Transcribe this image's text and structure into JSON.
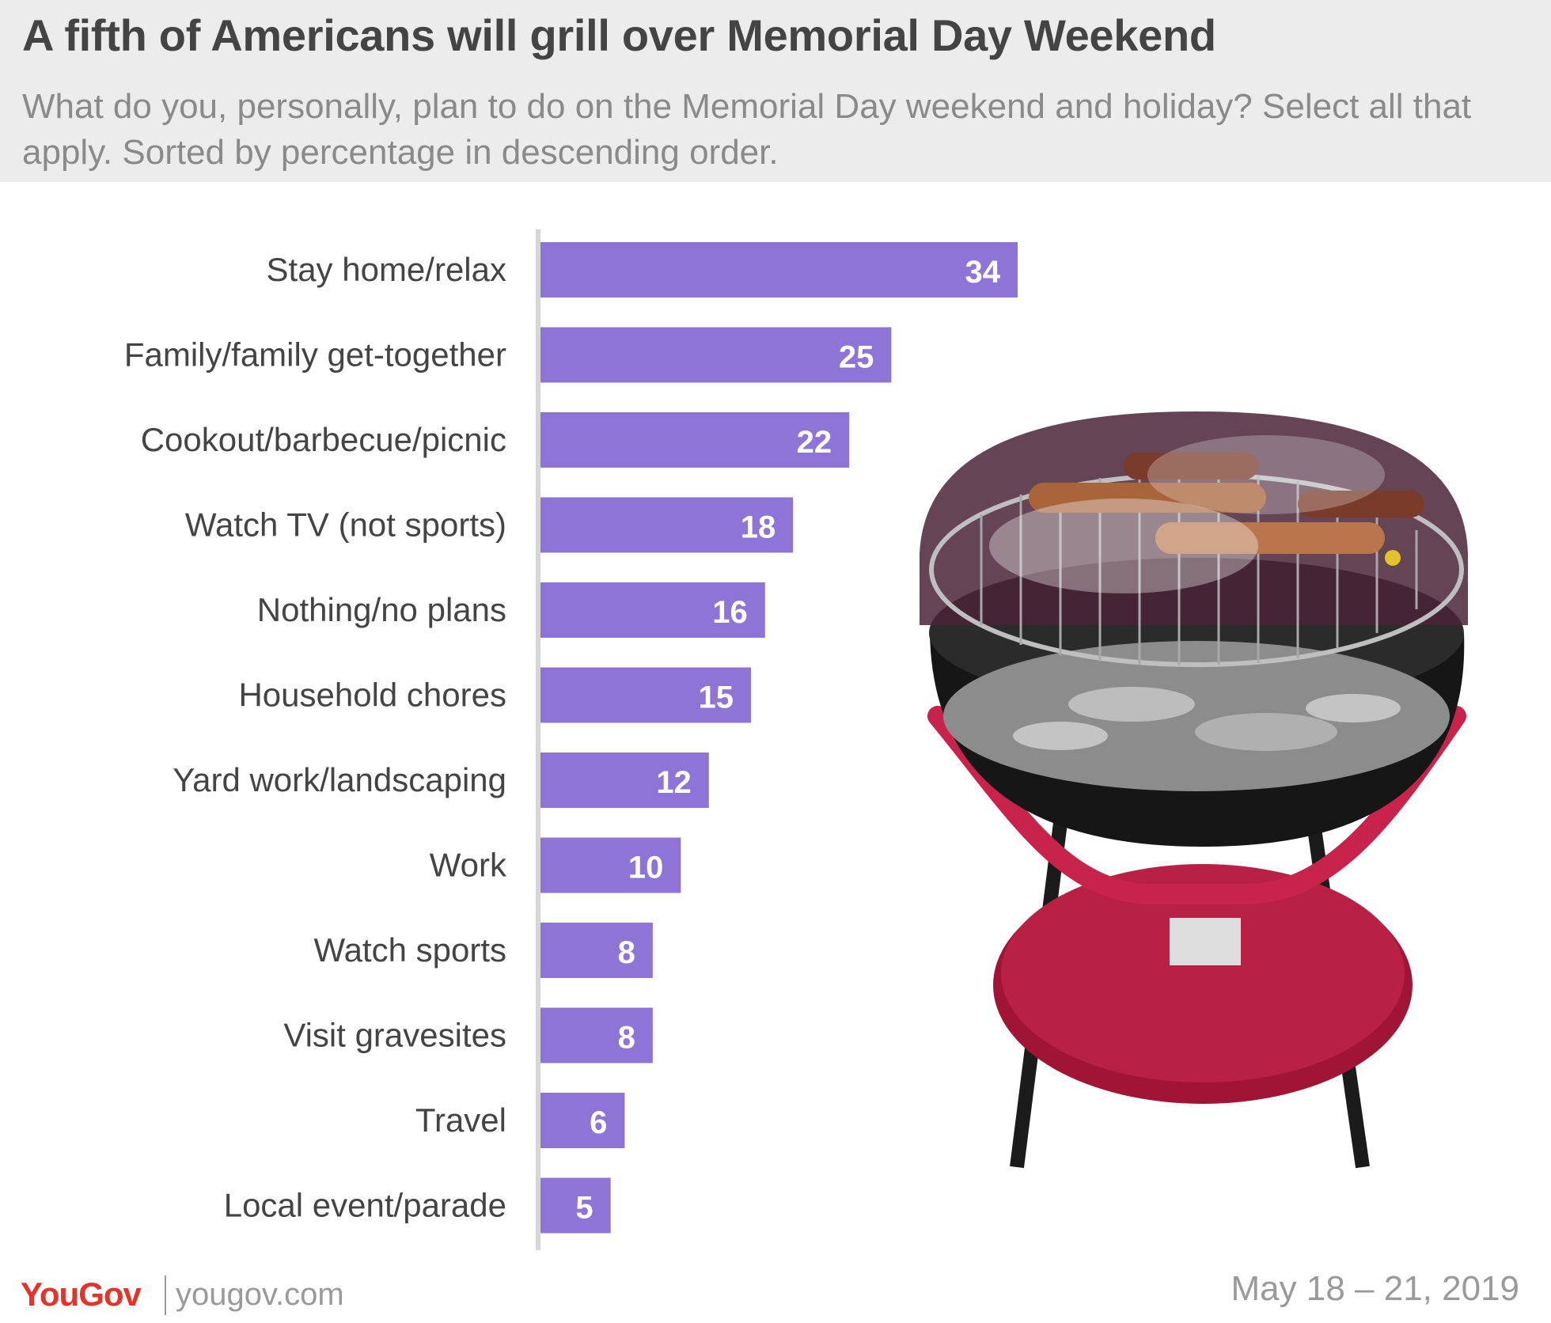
{
  "header": {
    "title": "A fifth of Americans will grill over Memorial Day Weekend",
    "subtitle": "What do you, personally, plan to do on the Memorial Day weekend and holiday? Select all that apply. Sorted by percentage in descending order."
  },
  "chart_data": {
    "type": "bar",
    "orientation": "horizontal",
    "title": "A fifth of Americans will grill over Memorial Day Weekend",
    "subtitle": "What do you, personally, plan to do on the Memorial Day weekend and holiday? Select all that apply. Sorted by percentage in descending order.",
    "categories": [
      "Stay home/relax",
      "Family/family get-together",
      "Cookout/barbecue/picnic",
      "Watch TV (not sports)",
      "Nothing/no plans",
      "Household chores",
      "Yard work/landscaping",
      "Work",
      "Watch sports",
      "Visit gravesites",
      "Travel",
      "Local event/parade"
    ],
    "values": [
      34,
      25,
      22,
      18,
      16,
      15,
      12,
      10,
      8,
      8,
      6,
      5
    ],
    "xlabel": "",
    "ylabel": "",
    "xlim": [
      0,
      34
    ],
    "grid": false,
    "bar_color": "#8f74d8",
    "illustration": "charcoal-grill-photo"
  },
  "footer": {
    "brand": "YouGov",
    "url": "yougov.com",
    "date": "May 18 – 21, 2019"
  },
  "colors": {
    "bar": "#8f74d8",
    "header_bg": "#ececec",
    "brand": "#e4342a",
    "muted_text": "#9a9a9a"
  }
}
